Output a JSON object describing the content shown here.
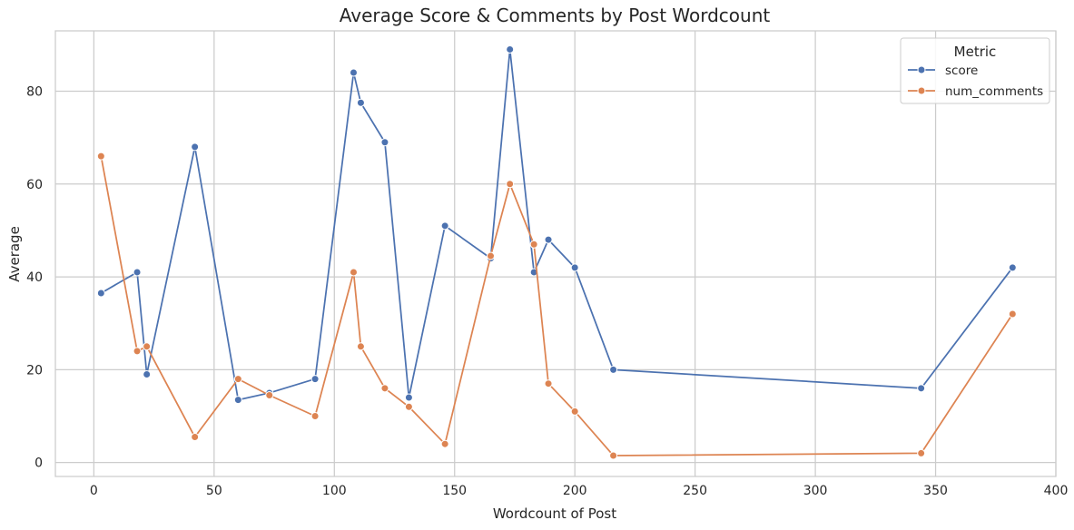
{
  "chart_data": {
    "type": "line",
    "title": "Average Score & Comments by Post Wordcount",
    "xlabel": "Wordcount of Post",
    "ylabel": "Average",
    "xlim": [
      -16,
      400
    ],
    "ylim": [
      -3,
      93
    ],
    "xticks": [
      0,
      50,
      100,
      150,
      200,
      250,
      300,
      350,
      400
    ],
    "yticks": [
      0,
      20,
      40,
      60,
      80
    ],
    "grid": true,
    "legend": {
      "title": "Metric",
      "placement": "top-right"
    },
    "series": [
      {
        "name": "score",
        "color": "#4c72b0",
        "points": [
          [
            3,
            36.5
          ],
          [
            18,
            41
          ],
          [
            22,
            19
          ],
          [
            42,
            68
          ],
          [
            60,
            13.5
          ],
          [
            73,
            15
          ],
          [
            92,
            18
          ],
          [
            108,
            84
          ],
          [
            111,
            77.5
          ],
          [
            121,
            69
          ],
          [
            131,
            14
          ],
          [
            146,
            51
          ],
          [
            165,
            44
          ],
          [
            173,
            89
          ],
          [
            183,
            41
          ],
          [
            189,
            48
          ],
          [
            200,
            42
          ],
          [
            216,
            20
          ],
          [
            344,
            16
          ],
          [
            382,
            42
          ]
        ]
      },
      {
        "name": "num_comments",
        "color": "#dd8452",
        "points": [
          [
            3,
            66
          ],
          [
            18,
            24
          ],
          [
            22,
            25
          ],
          [
            42,
            5.5
          ],
          [
            60,
            18
          ],
          [
            73,
            14.5
          ],
          [
            92,
            10
          ],
          [
            108,
            41
          ],
          [
            111,
            25
          ],
          [
            121,
            16
          ],
          [
            131,
            12
          ],
          [
            146,
            4
          ],
          [
            165,
            44.5
          ],
          [
            173,
            60
          ],
          [
            183,
            47
          ],
          [
            189,
            17
          ],
          [
            200,
            11
          ],
          [
            216,
            1.5
          ],
          [
            344,
            2
          ],
          [
            382,
            32
          ]
        ]
      }
    ]
  }
}
